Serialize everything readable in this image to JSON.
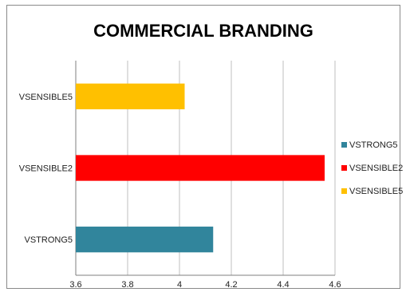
{
  "chart_data": {
    "type": "bar",
    "orientation": "horizontal",
    "title": "COMMERCIAL BRANDING",
    "xlabel": "",
    "ylabel": "",
    "xlim": [
      3.6,
      4.6
    ],
    "x_ticks": [
      "3.6",
      "3.8",
      "4",
      "4.2",
      "4.4",
      "4.6"
    ],
    "grid": "vertical",
    "legend_position": "right",
    "categories": [
      "VSTRONG5",
      "VSENSIBLE2",
      "VSENSIBLE5"
    ],
    "values": [
      4.13,
      4.56,
      4.02
    ],
    "colors": [
      "#31859C",
      "#FF0000",
      "#FFC000"
    ],
    "legend": [
      "VSTRONG5",
      "VSENSIBLE2",
      "VSENSIBLE5"
    ]
  }
}
